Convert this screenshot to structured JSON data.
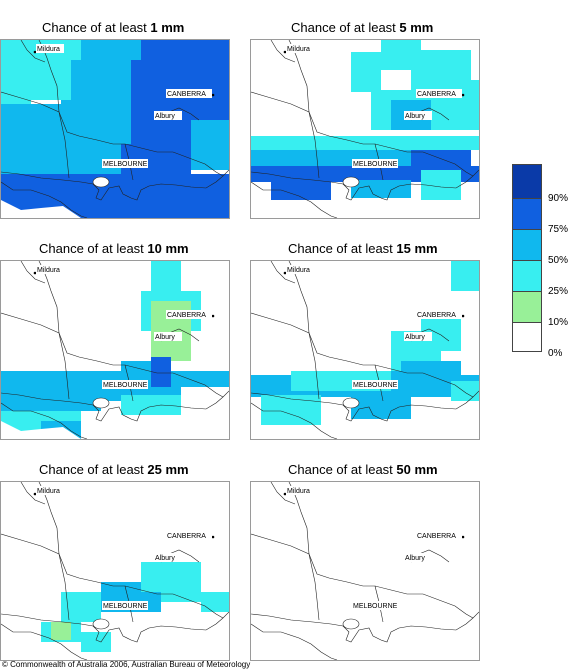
{
  "panels": [
    {
      "prefix": "Chance of at least ",
      "amount": "1 mm"
    },
    {
      "prefix": "Chance of at least ",
      "amount": "5 mm"
    },
    {
      "prefix": "Chance of at least ",
      "amount": "10 mm"
    },
    {
      "prefix": "Chance of at least ",
      "amount": "15 mm"
    },
    {
      "prefix": "Chance of at least ",
      "amount": "25 mm"
    },
    {
      "prefix": "Chance of at least ",
      "amount": "50 mm"
    }
  ],
  "places": {
    "mildura": "Mildura",
    "canberra": "CANBERRA",
    "albury": "Albury",
    "melbourne": "MELBOURNE"
  },
  "legend": {
    "labels": [
      "90%",
      "75%",
      "50%",
      "25%",
      "10%",
      "0%"
    ],
    "colors": [
      "#0a3aa8",
      "#1060e0",
      "#10b8ee",
      "#38eef0",
      "#98f098",
      "#ffffff"
    ]
  },
  "copyright": "© Commonwealth of Australia 2006, Australian Bureau of Meteorology"
}
